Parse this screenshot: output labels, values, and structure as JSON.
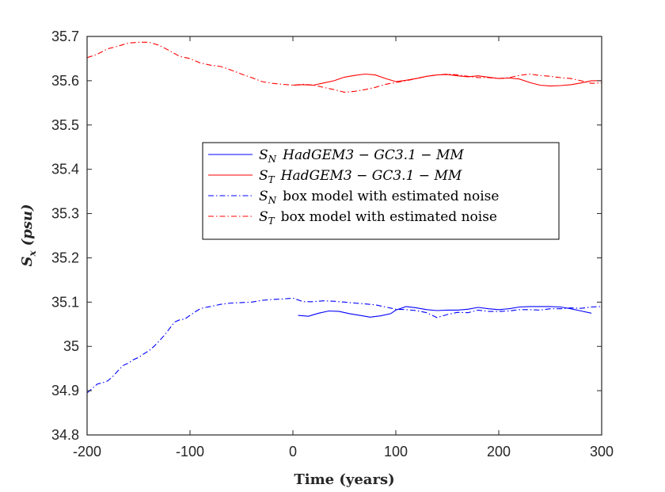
{
  "chart_data": {
    "type": "line",
    "xlabel": "Time (years)",
    "ylabel": {
      "var": "S",
      "sub": "x",
      "unit": "(psu)"
    },
    "xlim": [
      -200,
      300
    ],
    "ylim": [
      34.8,
      35.7
    ],
    "xticks": [
      -200,
      -100,
      0,
      100,
      200,
      300
    ],
    "xtick_labels": [
      "-200",
      "-100",
      "0",
      "100",
      "200",
      "300"
    ],
    "yticks": [
      34.8,
      34.9,
      35.0,
      35.1,
      35.2,
      35.3,
      35.4,
      35.5,
      35.6,
      35.7
    ],
    "ytick_labels": [
      "34.8",
      "34.9",
      "35",
      "35.1",
      "35.2",
      "35.3",
      "35.4",
      "35.5",
      "35.6",
      "35.7"
    ],
    "grid": false,
    "legend_position": "center",
    "series": [
      {
        "name": "S_N HadGEM3-GC3.1-MM",
        "legend_sym": "S",
        "legend_sub": "N",
        "legend_rest": "HadGEM3 − GC3.1 − MM",
        "legend_style": "math",
        "color": "#0000ff",
        "dash": "solid",
        "x": [
          5,
          15,
          25,
          35,
          45,
          55,
          65,
          75,
          85,
          95,
          100,
          110,
          120,
          130,
          140,
          150,
          160,
          170,
          180,
          190,
          200,
          210,
          220,
          230,
          240,
          250,
          260,
          270,
          280,
          290
        ],
        "y": [
          35.07,
          35.068,
          35.075,
          35.08,
          35.079,
          35.074,
          35.07,
          35.066,
          35.069,
          35.074,
          35.082,
          35.09,
          35.087,
          35.083,
          35.081,
          35.082,
          35.082,
          35.084,
          35.088,
          35.085,
          35.083,
          35.085,
          35.089,
          35.09,
          35.09,
          35.09,
          35.089,
          35.085,
          35.08,
          35.075
        ]
      },
      {
        "name": "S_T HadGEM3-GC3.1-MM",
        "legend_sym": "S",
        "legend_sub": "T",
        "legend_rest": "HadGEM3 − GC3.1 − MM",
        "legend_style": "math",
        "color": "#ff0000",
        "dash": "solid",
        "x": [
          0,
          10,
          20,
          30,
          40,
          50,
          60,
          70,
          80,
          90,
          100,
          110,
          120,
          130,
          140,
          150,
          160,
          170,
          180,
          190,
          200,
          210,
          220,
          230,
          240,
          250,
          260,
          270,
          280,
          290,
          300
        ],
        "y": [
          35.59,
          35.591,
          35.59,
          35.595,
          35.6,
          35.608,
          35.612,
          35.615,
          35.613,
          35.605,
          35.598,
          35.601,
          35.605,
          35.61,
          35.613,
          35.614,
          35.611,
          35.609,
          35.611,
          35.608,
          35.605,
          35.606,
          35.604,
          35.596,
          35.59,
          35.588,
          35.589,
          35.591,
          35.595,
          35.6,
          35.6
        ]
      },
      {
        "name": "S_N box model with estimated noise",
        "legend_sym": "S",
        "legend_sub": "N",
        "legend_rest": "box model with estimated noise",
        "legend_style": "text",
        "color": "#0000ff",
        "dash": "dashdot",
        "x": [
          -200,
          -195,
          -190,
          -185,
          -180,
          -175,
          -170,
          -165,
          -160,
          -155,
          -150,
          -145,
          -140,
          -135,
          -130,
          -125,
          -120,
          -115,
          -110,
          -105,
          -100,
          -95,
          -90,
          -85,
          -80,
          -70,
          -60,
          -50,
          -40,
          -30,
          -20,
          -10,
          0,
          10,
          20,
          30,
          40,
          50,
          60,
          70,
          80,
          90,
          100,
          110,
          120,
          130,
          140,
          150,
          160,
          170,
          180,
          190,
          200,
          210,
          220,
          230,
          240,
          250,
          260,
          270,
          280,
          290,
          300
        ],
        "y": [
          34.895,
          34.905,
          34.915,
          34.918,
          34.922,
          34.932,
          34.945,
          34.957,
          34.962,
          34.97,
          34.975,
          34.983,
          34.99,
          35.0,
          35.012,
          35.025,
          35.04,
          35.055,
          35.06,
          35.062,
          35.07,
          35.078,
          35.085,
          35.088,
          35.09,
          35.095,
          35.098,
          35.099,
          35.1,
          35.104,
          35.106,
          35.107,
          35.109,
          35.101,
          35.101,
          35.103,
          35.102,
          35.1,
          35.098,
          35.096,
          35.094,
          35.089,
          35.084,
          35.083,
          35.081,
          35.076,
          35.065,
          35.072,
          35.077,
          35.076,
          35.082,
          35.079,
          35.079,
          35.08,
          35.083,
          35.083,
          35.082,
          35.085,
          35.085,
          35.087,
          35.086,
          35.089,
          35.09
        ]
      },
      {
        "name": "S_T box model with estimated noise",
        "legend_sym": "S",
        "legend_sub": "T",
        "legend_rest": "box model with estimated noise",
        "legend_style": "text",
        "color": "#ff0000",
        "dash": "dashdot",
        "x": [
          -200,
          -190,
          -180,
          -170,
          -160,
          -150,
          -140,
          -130,
          -120,
          -110,
          -100,
          -90,
          -80,
          -70,
          -60,
          -50,
          -40,
          -30,
          -20,
          -10,
          0,
          10,
          20,
          30,
          40,
          50,
          60,
          70,
          80,
          90,
          100,
          110,
          120,
          130,
          140,
          150,
          160,
          170,
          180,
          190,
          200,
          210,
          220,
          230,
          240,
          250,
          260,
          270,
          280,
          290,
          300
        ],
        "y": [
          35.652,
          35.66,
          35.672,
          35.678,
          35.685,
          35.687,
          35.687,
          35.68,
          35.668,
          35.655,
          35.65,
          35.64,
          35.635,
          35.632,
          35.624,
          35.615,
          35.607,
          35.598,
          35.594,
          35.592,
          35.59,
          35.592,
          35.59,
          35.585,
          35.58,
          35.574,
          35.576,
          35.58,
          35.585,
          35.592,
          35.596,
          35.6,
          35.605,
          35.61,
          35.613,
          35.615,
          35.613,
          35.61,
          35.607,
          35.607,
          35.605,
          35.607,
          35.612,
          35.615,
          35.612,
          35.61,
          35.607,
          35.605,
          35.6,
          35.594,
          35.595
        ]
      }
    ]
  }
}
